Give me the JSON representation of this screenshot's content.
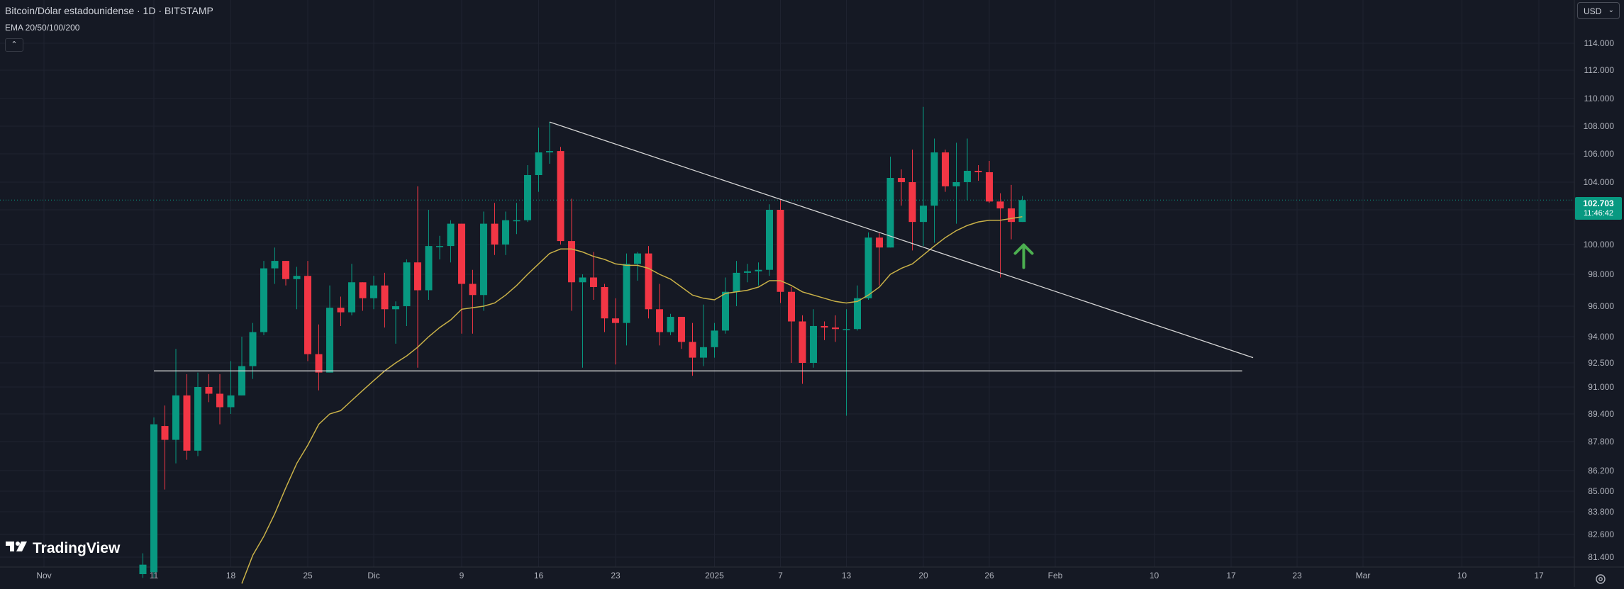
{
  "header": {
    "title": "Bitcoin/Dólar estadounidense · 1D · BITSTAMP",
    "indicator": "EMA 20/50/100/200",
    "collapse_icon": "chevron-up-icon",
    "currency": "USD",
    "currency_icon": "chevron-down-icon"
  },
  "branding": {
    "logo_text": "TradingView",
    "logo_icon": "tradingview-logo-icon"
  },
  "price_label": {
    "value": "102.703",
    "countdown": "11:46:42"
  },
  "footer": {
    "settings_icon": "gear-icon"
  },
  "colors": {
    "background": "#151924",
    "grid": "#1f2330",
    "up": "#089981",
    "down": "#f23645",
    "ema": "#c9b148",
    "trendline": "#d6d6d6",
    "arrow": "#4caf50",
    "axis_text": "#b2b5be"
  },
  "chart_data": {
    "type": "candlestick",
    "y_axis_labels": [
      {
        "value": 114000,
        "label": "114.000"
      },
      {
        "value": 112000,
        "label": "112.000"
      },
      {
        "value": 110000,
        "label": "110.000"
      },
      {
        "value": 108000,
        "label": "108.000"
      },
      {
        "value": 106000,
        "label": "106.000"
      },
      {
        "value": 104000,
        "label": "104.000"
      },
      {
        "value": 102000,
        "label": "102.000"
      },
      {
        "value": 100000,
        "label": "100.000"
      },
      {
        "value": 98000,
        "label": "98.000"
      },
      {
        "value": 96000,
        "label": "96.000"
      },
      {
        "value": 94000,
        "label": "94.000"
      },
      {
        "value": 92500,
        "label": "92.500"
      },
      {
        "value": 91000,
        "label": "91.000"
      },
      {
        "value": 89400,
        "label": "89.400"
      },
      {
        "value": 87800,
        "label": "87.800"
      },
      {
        "value": 86200,
        "label": "86.200"
      },
      {
        "value": 85000,
        "label": "85.000"
      },
      {
        "value": 83800,
        "label": "83.800"
      },
      {
        "value": 82600,
        "label": "82.600"
      },
      {
        "value": 81400,
        "label": "81.400"
      }
    ],
    "x_axis_labels": [
      {
        "date": "2024-11-01",
        "label": "Nov"
      },
      {
        "date": "2024-11-11",
        "label": "11"
      },
      {
        "date": "2024-11-18",
        "label": "18"
      },
      {
        "date": "2024-11-25",
        "label": "25"
      },
      {
        "date": "2024-12-01",
        "label": "Dic"
      },
      {
        "date": "2024-12-09",
        "label": "9"
      },
      {
        "date": "2024-12-16",
        "label": "16"
      },
      {
        "date": "2024-12-23",
        "label": "23"
      },
      {
        "date": "2025-01-01",
        "label": "2025"
      },
      {
        "date": "2025-01-07",
        "label": "7"
      },
      {
        "date": "2025-01-13",
        "label": "13"
      },
      {
        "date": "2025-01-20",
        "label": "20"
      },
      {
        "date": "2025-01-26",
        "label": "26"
      },
      {
        "date": "2025-02-01",
        "label": "Feb"
      },
      {
        "date": "2025-02-10",
        "label": "10"
      },
      {
        "date": "2025-02-17",
        "label": "17"
      },
      {
        "date": "2025-02-23",
        "label": "23"
      },
      {
        "date": "2025-03-01",
        "label": "Mar"
      },
      {
        "date": "2025-03-10",
        "label": "10"
      },
      {
        "date": "2025-03-17",
        "label": "17"
      }
    ],
    "candles": [
      {
        "date": "2024-11-10",
        "o": 80500,
        "h": 81600,
        "l": 80300,
        "c": 81000
      },
      {
        "date": "2024-11-11",
        "o": 80600,
        "h": 89200,
        "l": 80300,
        "c": 88800
      },
      {
        "date": "2024-11-12",
        "o": 88700,
        "h": 89900,
        "l": 85100,
        "c": 87900
      },
      {
        "date": "2024-11-13",
        "o": 87900,
        "h": 93300,
        "l": 86600,
        "c": 90500
      },
      {
        "date": "2024-11-14",
        "o": 90500,
        "h": 91800,
        "l": 86800,
        "c": 87300
      },
      {
        "date": "2024-11-15",
        "o": 87300,
        "h": 91900,
        "l": 87000,
        "c": 91000
      },
      {
        "date": "2024-11-16",
        "o": 91000,
        "h": 91800,
        "l": 90100,
        "c": 90600
      },
      {
        "date": "2024-11-17",
        "o": 90600,
        "h": 91800,
        "l": 88800,
        "c": 89800
      },
      {
        "date": "2024-11-18",
        "o": 89800,
        "h": 92600,
        "l": 89400,
        "c": 90500
      },
      {
        "date": "2024-11-19",
        "o": 90500,
        "h": 94000,
        "l": 90500,
        "c": 92300
      },
      {
        "date": "2024-11-20",
        "o": 92300,
        "h": 94900,
        "l": 91500,
        "c": 94300
      },
      {
        "date": "2024-11-21",
        "o": 94300,
        "h": 98900,
        "l": 94100,
        "c": 98400
      },
      {
        "date": "2024-11-22",
        "o": 98400,
        "h": 99800,
        "l": 97400,
        "c": 98900
      },
      {
        "date": "2024-11-23",
        "o": 98900,
        "h": 98900,
        "l": 97300,
        "c": 97700
      },
      {
        "date": "2024-11-24",
        "o": 97700,
        "h": 98500,
        "l": 95800,
        "c": 97900
      },
      {
        "date": "2024-11-25",
        "o": 97900,
        "h": 98900,
        "l": 92600,
        "c": 93000
      },
      {
        "date": "2024-11-26",
        "o": 93000,
        "h": 94800,
        "l": 90800,
        "c": 91900
      },
      {
        "date": "2024-11-27",
        "o": 91900,
        "h": 97300,
        "l": 91900,
        "c": 95900
      },
      {
        "date": "2024-11-28",
        "o": 95900,
        "h": 96600,
        "l": 94700,
        "c": 95600
      },
      {
        "date": "2024-11-29",
        "o": 95600,
        "h": 98700,
        "l": 95400,
        "c": 97500
      },
      {
        "date": "2024-11-30",
        "o": 97500,
        "h": 97500,
        "l": 95700,
        "c": 96500
      },
      {
        "date": "2024-12-01",
        "o": 96500,
        "h": 97900,
        "l": 95800,
        "c": 97300
      },
      {
        "date": "2024-12-02",
        "o": 97300,
        "h": 98100,
        "l": 94600,
        "c": 95800
      },
      {
        "date": "2024-12-03",
        "o": 95800,
        "h": 96300,
        "l": 93600,
        "c": 96000
      },
      {
        "date": "2024-12-04",
        "o": 96000,
        "h": 99000,
        "l": 94700,
        "c": 98800
      },
      {
        "date": "2024-12-05",
        "o": 98800,
        "h": 103700,
        "l": 92200,
        "c": 97000
      },
      {
        "date": "2024-12-06",
        "o": 97000,
        "h": 102000,
        "l": 96400,
        "c": 99900
      },
      {
        "date": "2024-12-07",
        "o": 99900,
        "h": 100500,
        "l": 99000,
        "c": 99900
      },
      {
        "date": "2024-12-08",
        "o": 99900,
        "h": 101400,
        "l": 98800,
        "c": 101200
      },
      {
        "date": "2024-12-09",
        "o": 101200,
        "h": 101200,
        "l": 94200,
        "c": 97400
      },
      {
        "date": "2024-12-10",
        "o": 97400,
        "h": 98300,
        "l": 94200,
        "c": 96700
      },
      {
        "date": "2024-12-11",
        "o": 96700,
        "h": 101900,
        "l": 95700,
        "c": 101200
      },
      {
        "date": "2024-12-12",
        "o": 101200,
        "h": 102500,
        "l": 99300,
        "c": 100000
      },
      {
        "date": "2024-12-13",
        "o": 100000,
        "h": 101900,
        "l": 99300,
        "c": 101400
      },
      {
        "date": "2024-12-14",
        "o": 101400,
        "h": 102500,
        "l": 100600,
        "c": 101400
      },
      {
        "date": "2024-12-15",
        "o": 101400,
        "h": 105200,
        "l": 101300,
        "c": 104500
      },
      {
        "date": "2024-12-16",
        "o": 104500,
        "h": 107900,
        "l": 103300,
        "c": 106100
      },
      {
        "date": "2024-12-17",
        "o": 106100,
        "h": 108300,
        "l": 105300,
        "c": 106200
      },
      {
        "date": "2024-12-18",
        "o": 106200,
        "h": 106500,
        "l": 100000,
        "c": 100200
      },
      {
        "date": "2024-12-19",
        "o": 100200,
        "h": 102800,
        "l": 95700,
        "c": 97500
      },
      {
        "date": "2024-12-20",
        "o": 97500,
        "h": 98000,
        "l": 92200,
        "c": 97800
      },
      {
        "date": "2024-12-21",
        "o": 97800,
        "h": 99500,
        "l": 96400,
        "c": 97200
      },
      {
        "date": "2024-12-22",
        "o": 97200,
        "h": 97400,
        "l": 94300,
        "c": 95200
      },
      {
        "date": "2024-12-23",
        "o": 95200,
        "h": 96500,
        "l": 92400,
        "c": 94900
      },
      {
        "date": "2024-12-24",
        "o": 94900,
        "h": 99400,
        "l": 93500,
        "c": 98700
      },
      {
        "date": "2024-12-25",
        "o": 98700,
        "h": 99500,
        "l": 97600,
        "c": 99400
      },
      {
        "date": "2024-12-26",
        "o": 99400,
        "h": 99900,
        "l": 95200,
        "c": 95800
      },
      {
        "date": "2024-12-27",
        "o": 95800,
        "h": 97400,
        "l": 93500,
        "c": 94300
      },
      {
        "date": "2024-12-28",
        "o": 94300,
        "h": 95500,
        "l": 94100,
        "c": 95300
      },
      {
        "date": "2024-12-29",
        "o": 95300,
        "h": 95300,
        "l": 93300,
        "c": 93700
      },
      {
        "date": "2024-12-30",
        "o": 93700,
        "h": 94900,
        "l": 91700,
        "c": 92800
      },
      {
        "date": "2024-12-31",
        "o": 92800,
        "h": 96100,
        "l": 92300,
        "c": 93400
      },
      {
        "date": "2025-01-01",
        "o": 93400,
        "h": 94900,
        "l": 92800,
        "c": 94400
      },
      {
        "date": "2025-01-02",
        "o": 94400,
        "h": 97800,
        "l": 94200,
        "c": 96900
      },
      {
        "date": "2025-01-03",
        "o": 96900,
        "h": 98900,
        "l": 96000,
        "c": 98100
      },
      {
        "date": "2025-01-04",
        "o": 98100,
        "h": 98700,
        "l": 97500,
        "c": 98200
      },
      {
        "date": "2025-01-05",
        "o": 98200,
        "h": 98800,
        "l": 97300,
        "c": 98300
      },
      {
        "date": "2025-01-06",
        "o": 98300,
        "h": 102400,
        "l": 97900,
        "c": 102000
      },
      {
        "date": "2025-01-07",
        "o": 102000,
        "h": 102700,
        "l": 96200,
        "c": 96900
      },
      {
        "date": "2025-01-08",
        "o": 96900,
        "h": 97200,
        "l": 92500,
        "c": 95000
      },
      {
        "date": "2025-01-09",
        "o": 95000,
        "h": 95400,
        "l": 91200,
        "c": 92500
      },
      {
        "date": "2025-01-10",
        "o": 92500,
        "h": 95800,
        "l": 92200,
        "c": 94700
      },
      {
        "date": "2025-01-11",
        "o": 94700,
        "h": 95000,
        "l": 93800,
        "c": 94600
      },
      {
        "date": "2025-01-12",
        "o": 94600,
        "h": 95400,
        "l": 93700,
        "c": 94500
      },
      {
        "date": "2025-01-13",
        "o": 94500,
        "h": 95800,
        "l": 89300,
        "c": 94500
      },
      {
        "date": "2025-01-14",
        "o": 94500,
        "h": 97300,
        "l": 94400,
        "c": 96500
      },
      {
        "date": "2025-01-15",
        "o": 96500,
        "h": 100700,
        "l": 96400,
        "c": 100400
      },
      {
        "date": "2025-01-16",
        "o": 100400,
        "h": 100700,
        "l": 97300,
        "c": 99800
      },
      {
        "date": "2025-01-17",
        "o": 99800,
        "h": 105800,
        "l": 99800,
        "c": 104300
      },
      {
        "date": "2025-01-18",
        "o": 104300,
        "h": 104900,
        "l": 102300,
        "c": 104000
      },
      {
        "date": "2025-01-19",
        "o": 104000,
        "h": 106300,
        "l": 99600,
        "c": 101300
      },
      {
        "date": "2025-01-20",
        "o": 101300,
        "h": 109400,
        "l": 99900,
        "c": 102300
      },
      {
        "date": "2025-01-21",
        "o": 102300,
        "h": 107100,
        "l": 100100,
        "c": 106100
      },
      {
        "date": "2025-01-22",
        "o": 106100,
        "h": 106300,
        "l": 103300,
        "c": 103700
      },
      {
        "date": "2025-01-23",
        "o": 103700,
        "h": 106800,
        "l": 101200,
        "c": 104000
      },
      {
        "date": "2025-01-24",
        "o": 104000,
        "h": 107100,
        "l": 102700,
        "c": 104800
      },
      {
        "date": "2025-01-25",
        "o": 104800,
        "h": 105200,
        "l": 104100,
        "c": 104700
      },
      {
        "date": "2025-01-26",
        "o": 104700,
        "h": 105500,
        "l": 102500,
        "c": 102600
      },
      {
        "date": "2025-01-27",
        "o": 102600,
        "h": 103200,
        "l": 97800,
        "c": 102100
      },
      {
        "date": "2025-01-28",
        "o": 102100,
        "h": 103800,
        "l": 100300,
        "c": 101300
      },
      {
        "date": "2025-01-29",
        "o": 101300,
        "h": 103000,
        "l": 101300,
        "c": 102703
      }
    ],
    "ema": [
      {
        "date": "2024-11-19",
        "v": 80000
      },
      {
        "date": "2024-11-20",
        "v": 81500
      },
      {
        "date": "2024-11-21",
        "v": 82500
      },
      {
        "date": "2024-11-22",
        "v": 83700
      },
      {
        "date": "2024-11-23",
        "v": 85200
      },
      {
        "date": "2024-11-24",
        "v": 86600
      },
      {
        "date": "2024-11-25",
        "v": 87600
      },
      {
        "date": "2024-11-26",
        "v": 88800
      },
      {
        "date": "2024-11-27",
        "v": 89400
      },
      {
        "date": "2024-11-28",
        "v": 89600
      },
      {
        "date": "2024-11-29",
        "v": 90200
      },
      {
        "date": "2024-11-30",
        "v": 90800
      },
      {
        "date": "2024-12-01",
        "v": 91400
      },
      {
        "date": "2024-12-02",
        "v": 92000
      },
      {
        "date": "2024-12-03",
        "v": 92500
      },
      {
        "date": "2024-12-04",
        "v": 92900
      },
      {
        "date": "2024-12-05",
        "v": 93400
      },
      {
        "date": "2024-12-06",
        "v": 94000
      },
      {
        "date": "2024-12-07",
        "v": 94600
      },
      {
        "date": "2024-12-08",
        "v": 95100
      },
      {
        "date": "2024-12-09",
        "v": 95800
      },
      {
        "date": "2024-12-10",
        "v": 95900
      },
      {
        "date": "2024-12-11",
        "v": 96000
      },
      {
        "date": "2024-12-12",
        "v": 96200
      },
      {
        "date": "2024-12-13",
        "v": 96700
      },
      {
        "date": "2024-12-14",
        "v": 97300
      },
      {
        "date": "2024-12-15",
        "v": 98000
      },
      {
        "date": "2024-12-16",
        "v": 98700
      },
      {
        "date": "2024-12-17",
        "v": 99400
      },
      {
        "date": "2024-12-18",
        "v": 99700
      },
      {
        "date": "2024-12-19",
        "v": 99700
      },
      {
        "date": "2024-12-20",
        "v": 99500
      },
      {
        "date": "2024-12-21",
        "v": 99200
      },
      {
        "date": "2024-12-22",
        "v": 99000
      },
      {
        "date": "2024-12-23",
        "v": 98700
      },
      {
        "date": "2024-12-24",
        "v": 98600
      },
      {
        "date": "2024-12-25",
        "v": 98600
      },
      {
        "date": "2024-12-26",
        "v": 98400
      },
      {
        "date": "2024-12-27",
        "v": 98000
      },
      {
        "date": "2024-12-28",
        "v": 97700
      },
      {
        "date": "2024-12-29",
        "v": 97200
      },
      {
        "date": "2024-12-30",
        "v": 96700
      },
      {
        "date": "2024-12-31",
        "v": 96500
      },
      {
        "date": "2025-01-01",
        "v": 96400
      },
      {
        "date": "2025-01-02",
        "v": 96800
      },
      {
        "date": "2025-01-03",
        "v": 96900
      },
      {
        "date": "2025-01-04",
        "v": 97000
      },
      {
        "date": "2025-01-05",
        "v": 97200
      },
      {
        "date": "2025-01-06",
        "v": 97600
      },
      {
        "date": "2025-01-07",
        "v": 97600
      },
      {
        "date": "2025-01-08",
        "v": 97300
      },
      {
        "date": "2025-01-09",
        "v": 96900
      },
      {
        "date": "2025-01-10",
        "v": 96700
      },
      {
        "date": "2025-01-11",
        "v": 96500
      },
      {
        "date": "2025-01-12",
        "v": 96300
      },
      {
        "date": "2025-01-13",
        "v": 96200
      },
      {
        "date": "2025-01-14",
        "v": 96300
      },
      {
        "date": "2025-01-15",
        "v": 96700
      },
      {
        "date": "2025-01-16",
        "v": 97200
      },
      {
        "date": "2025-01-17",
        "v": 98000
      },
      {
        "date": "2025-01-18",
        "v": 98400
      },
      {
        "date": "2025-01-19",
        "v": 98700
      },
      {
        "date": "2025-01-20",
        "v": 99300
      },
      {
        "date": "2025-01-21",
        "v": 99900
      },
      {
        "date": "2025-01-22",
        "v": 100400
      },
      {
        "date": "2025-01-23",
        "v": 100800
      },
      {
        "date": "2025-01-24",
        "v": 101100
      },
      {
        "date": "2025-01-25",
        "v": 101300
      },
      {
        "date": "2025-01-26",
        "v": 101400
      },
      {
        "date": "2025-01-27",
        "v": 101400
      },
      {
        "date": "2025-01-28",
        "v": 101500
      },
      {
        "date": "2025-01-29",
        "v": 101600
      }
    ],
    "drawings": [
      {
        "kind": "trendline",
        "from": {
          "date": "2024-12-17",
          "price": 108300
        },
        "to": {
          "date": "2025-02-19",
          "price": 92800
        }
      },
      {
        "kind": "trendline",
        "from": {
          "date": "2024-11-11",
          "price": 92000
        },
        "to": {
          "date": "2025-02-18",
          "price": 92000
        }
      }
    ],
    "annotation_arrow": {
      "date": "2025-01-29",
      "price": 99500,
      "direction": "up"
    },
    "last_price": 102703
  }
}
